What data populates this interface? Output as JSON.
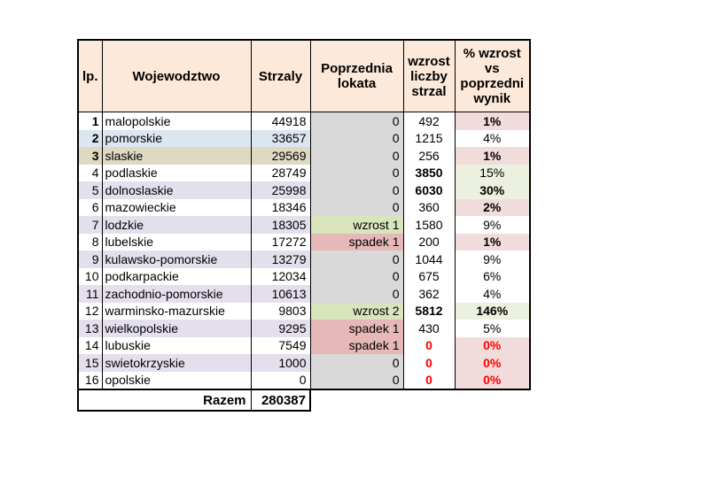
{
  "colors": {
    "peach": "#FDE9D9",
    "white": "#FFFFFF",
    "blue": "#DCE6F1",
    "tan": "#DDD9C3",
    "lavender": "#E4DFEC",
    "gray": "#D9D9D9",
    "green": "#D8E4BC",
    "rose": "#E6B8B7",
    "pink": "#F2DCDB",
    "lightgreen": "#EBF1DE",
    "red": "#FF0000",
    "black": "#000000"
  },
  "table": {
    "headers": [
      {
        "label": "lp."
      },
      {
        "label": "Wojewodztwo"
      },
      {
        "label": "Strzaly"
      },
      {
        "label": "Poprzednia lokata"
      },
      {
        "label": "wzrost liczby strzal"
      },
      {
        "label": "% wzrost vs poprzedni wynik"
      }
    ],
    "rows": [
      {
        "lp": "1",
        "lp_bold": true,
        "name": "malopolskie",
        "shots": "44918",
        "band": "white",
        "lokata": {
          "text": "0",
          "bg": "gray"
        },
        "wzrost": {
          "text": "492",
          "bold": false,
          "red": false
        },
        "pct": {
          "text": "1%",
          "bold": true,
          "red": false,
          "bg": "pink"
        }
      },
      {
        "lp": "2",
        "lp_bold": true,
        "name": "pomorskie",
        "shots": "33657",
        "band": "blue",
        "lokata": {
          "text": "0",
          "bg": "gray"
        },
        "wzrost": {
          "text": "1215",
          "bold": false,
          "red": false
        },
        "pct": {
          "text": "4%",
          "bold": false,
          "red": false,
          "bg": "white"
        }
      },
      {
        "lp": "3",
        "lp_bold": true,
        "name": "slaskie",
        "shots": "29569",
        "band": "tan",
        "lokata": {
          "text": "0",
          "bg": "gray"
        },
        "wzrost": {
          "text": "256",
          "bold": false,
          "red": false
        },
        "pct": {
          "text": "1%",
          "bold": true,
          "red": false,
          "bg": "pink"
        }
      },
      {
        "lp": "4",
        "lp_bold": false,
        "name": "podlaskie",
        "shots": "28749",
        "band": "white",
        "lokata": {
          "text": "0",
          "bg": "gray"
        },
        "wzrost": {
          "text": "3850",
          "bold": true,
          "red": false
        },
        "pct": {
          "text": "15%",
          "bold": false,
          "red": false,
          "bg": "lightgreen"
        }
      },
      {
        "lp": "5",
        "lp_bold": false,
        "name": "dolnoslaskie",
        "shots": "25998",
        "band": "lavender",
        "lokata": {
          "text": "0",
          "bg": "gray"
        },
        "wzrost": {
          "text": "6030",
          "bold": true,
          "red": false
        },
        "pct": {
          "text": "30%",
          "bold": true,
          "red": false,
          "bg": "lightgreen"
        }
      },
      {
        "lp": "6",
        "lp_bold": false,
        "name": "mazowieckie",
        "shots": "18346",
        "band": "white",
        "lokata": {
          "text": "0",
          "bg": "gray"
        },
        "wzrost": {
          "text": "360",
          "bold": false,
          "red": false
        },
        "pct": {
          "text": "2%",
          "bold": true,
          "red": false,
          "bg": "pink"
        }
      },
      {
        "lp": "7",
        "lp_bold": false,
        "name": "lodzkie",
        "shots": "18305",
        "band": "lavender",
        "lokata": {
          "text": "wzrost 1",
          "bg": "green"
        },
        "wzrost": {
          "text": "1580",
          "bold": false,
          "red": false
        },
        "pct": {
          "text": "9%",
          "bold": false,
          "red": false,
          "bg": "white"
        }
      },
      {
        "lp": "8",
        "lp_bold": false,
        "name": "lubelskie",
        "shots": "17272",
        "band": "white",
        "lokata": {
          "text": "spadek 1",
          "bg": "rose"
        },
        "wzrost": {
          "text": "200",
          "bold": false,
          "red": false
        },
        "pct": {
          "text": "1%",
          "bold": true,
          "red": false,
          "bg": "pink"
        }
      },
      {
        "lp": "9",
        "lp_bold": false,
        "name": "kulawsko-pomorskie",
        "shots": "13279",
        "band": "lavender",
        "lokata": {
          "text": "0",
          "bg": "gray"
        },
        "wzrost": {
          "text": "1044",
          "bold": false,
          "red": false
        },
        "pct": {
          "text": "9%",
          "bold": false,
          "red": false,
          "bg": "white"
        }
      },
      {
        "lp": "10",
        "lp_bold": false,
        "name": "podkarpackie",
        "shots": "12034",
        "band": "white",
        "lokata": {
          "text": "0",
          "bg": "gray"
        },
        "wzrost": {
          "text": "675",
          "bold": false,
          "red": false
        },
        "pct": {
          "text": "6%",
          "bold": false,
          "red": false,
          "bg": "white"
        }
      },
      {
        "lp": "11",
        "lp_bold": false,
        "name": "zachodnio-pomorskie",
        "shots": "10613",
        "band": "lavender",
        "lokata": {
          "text": "0",
          "bg": "gray"
        },
        "wzrost": {
          "text": "362",
          "bold": false,
          "red": false
        },
        "pct": {
          "text": "4%",
          "bold": false,
          "red": false,
          "bg": "white"
        }
      },
      {
        "lp": "12",
        "lp_bold": false,
        "name": "warminsko-mazurskie",
        "shots": "9803",
        "band": "white",
        "lokata": {
          "text": "wzrost 2",
          "bg": "green"
        },
        "wzrost": {
          "text": "5812",
          "bold": true,
          "red": false
        },
        "pct": {
          "text": "146%",
          "bold": true,
          "red": false,
          "bg": "lightgreen"
        }
      },
      {
        "lp": "13",
        "lp_bold": false,
        "name": "wielkopolskie",
        "shots": "9295",
        "band": "lavender",
        "lokata": {
          "text": "spadek 1",
          "bg": "rose"
        },
        "wzrost": {
          "text": "430",
          "bold": false,
          "red": false
        },
        "pct": {
          "text": "5%",
          "bold": false,
          "red": false,
          "bg": "white"
        }
      },
      {
        "lp": "14",
        "lp_bold": false,
        "name": "lubuskie",
        "shots": "7549",
        "band": "white",
        "lokata": {
          "text": "spadek 1",
          "bg": "rose"
        },
        "wzrost": {
          "text": "0",
          "bold": true,
          "red": true
        },
        "pct": {
          "text": "0%",
          "bold": true,
          "red": true,
          "bg": "pink"
        }
      },
      {
        "lp": "15",
        "lp_bold": false,
        "name": "swietokrzyskie",
        "shots": "1000",
        "band": "lavender",
        "lokata": {
          "text": "0",
          "bg": "gray"
        },
        "wzrost": {
          "text": "0",
          "bold": true,
          "red": true
        },
        "pct": {
          "text": "0%",
          "bold": true,
          "red": true,
          "bg": "pink"
        }
      },
      {
        "lp": "16",
        "lp_bold": false,
        "name": "opolskie",
        "shots": "0",
        "band": "white",
        "lokata": {
          "text": "0",
          "bg": "gray"
        },
        "wzrost": {
          "text": "0",
          "bold": true,
          "red": true
        },
        "pct": {
          "text": "0%",
          "bold": true,
          "red": true,
          "bg": "pink"
        }
      }
    ],
    "footer": {
      "label": "Razem",
      "total": "280387"
    }
  },
  "chart_data": {
    "type": "table",
    "title": "",
    "columns": [
      "lp.",
      "Wojewodztwo",
      "Strzaly",
      "Poprzednia lokata",
      "wzrost liczby strzal",
      "% wzrost vs poprzedni wynik"
    ],
    "rows": [
      [
        1,
        "malopolskie",
        44918,
        "0",
        492,
        "1%"
      ],
      [
        2,
        "pomorskie",
        33657,
        "0",
        1215,
        "4%"
      ],
      [
        3,
        "slaskie",
        29569,
        "0",
        256,
        "1%"
      ],
      [
        4,
        "podlaskie",
        28749,
        "0",
        3850,
        "15%"
      ],
      [
        5,
        "dolnoslaskie",
        25998,
        "0",
        6030,
        "30%"
      ],
      [
        6,
        "mazowieckie",
        18346,
        "0",
        360,
        "2%"
      ],
      [
        7,
        "lodzkie",
        18305,
        "wzrost 1",
        1580,
        "9%"
      ],
      [
        8,
        "lubelskie",
        17272,
        "spadek 1",
        200,
        "1%"
      ],
      [
        9,
        "kulawsko-pomorskie",
        13279,
        "0",
        1044,
        "9%"
      ],
      [
        10,
        "podkarpackie",
        12034,
        "0",
        675,
        "6%"
      ],
      [
        11,
        "zachodnio-pomorskie",
        10613,
        "0",
        362,
        "4%"
      ],
      [
        12,
        "warminsko-mazurskie",
        9803,
        "wzrost 2",
        5812,
        "146%"
      ],
      [
        13,
        "wielkopolskie",
        9295,
        "spadek 1",
        430,
        "5%"
      ],
      [
        14,
        "lubuskie",
        7549,
        "spadek 1",
        0,
        "0%"
      ],
      [
        15,
        "swietokrzyskie",
        1000,
        "0",
        0,
        "0%"
      ],
      [
        16,
        "opolskie",
        0,
        "0",
        0,
        "0%"
      ]
    ],
    "total_row": [
      "Razem",
      280387
    ]
  }
}
